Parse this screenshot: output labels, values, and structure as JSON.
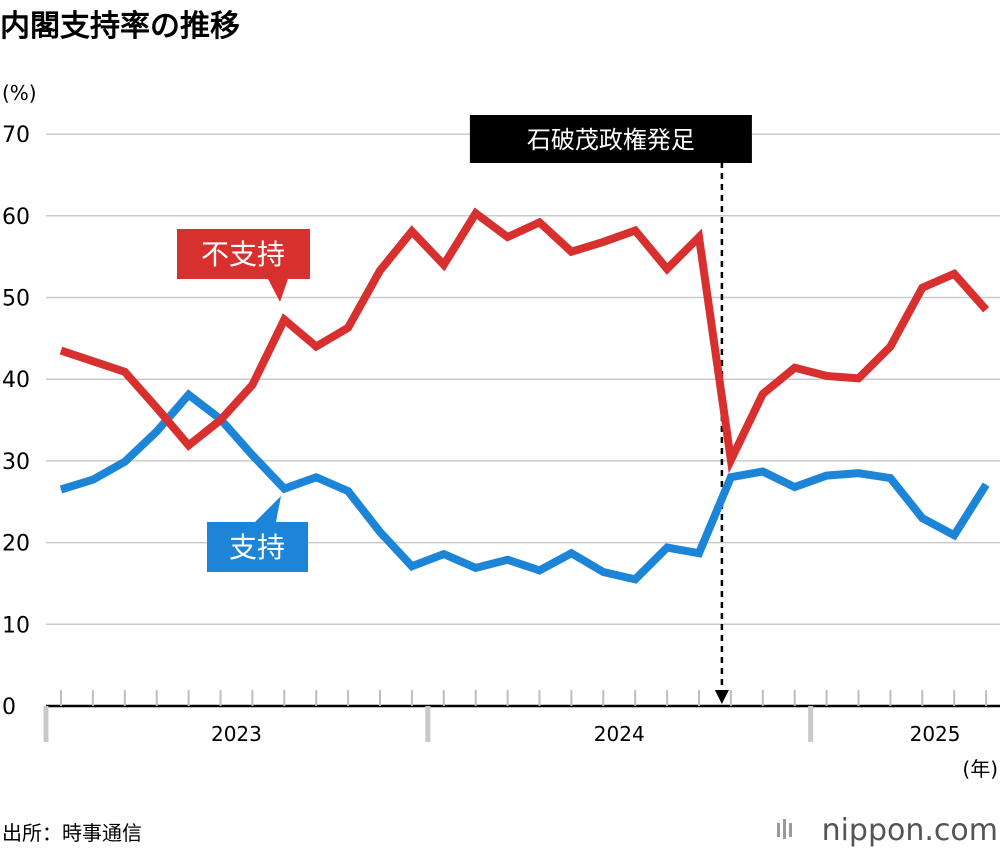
{
  "chart_data": {
    "type": "line",
    "title": "内閣支持率の推移",
    "ylabel": "(%)",
    "xlabel": "(年)",
    "ylim": [
      0,
      70
    ],
    "yticks": [
      "0",
      "10",
      "20",
      "30",
      "40",
      "50",
      "60",
      "70"
    ],
    "years": [
      "2023",
      "2024",
      "2025"
    ],
    "x": [
      "2023-01",
      "2023-02",
      "2023-03",
      "2023-04",
      "2023-05",
      "2023-06",
      "2023-07",
      "2023-08",
      "2023-09",
      "2023-10",
      "2023-11",
      "2023-12",
      "2024-01",
      "2024-02",
      "2024-03",
      "2024-04",
      "2024-05",
      "2024-06",
      "2024-07",
      "2024-08",
      "2024-09",
      "2024-10",
      "2024-11",
      "2024-12",
      "2025-01",
      "2025-02",
      "2025-03",
      "2025-04",
      "2025-05",
      "2025-06"
    ],
    "series": [
      {
        "name": "不支持",
        "color": "#d8302e",
        "values": [
          43.5,
          42.2,
          40.9,
          36.5,
          31.9,
          35.0,
          39.3,
          47.3,
          44.0,
          46.3,
          53.3,
          58.1,
          54.0,
          60.3,
          57.4,
          59.2,
          55.6,
          56.8,
          58.2,
          53.5,
          57.4,
          30.1,
          38.2,
          41.4,
          40.4,
          40.1,
          44.0,
          51.2,
          52.9,
          48.5
        ]
      },
      {
        "name": "支持",
        "color": "#1d85d8",
        "values": [
          26.5,
          27.7,
          29.9,
          33.6,
          38.1,
          35.1,
          30.7,
          26.6,
          28.0,
          26.3,
          21.3,
          17.1,
          18.6,
          16.9,
          17.9,
          16.6,
          18.7,
          16.4,
          15.5,
          19.4,
          18.7,
          28.0,
          28.7,
          26.8,
          28.2,
          28.5,
          27.9,
          23.0,
          20.9,
          27.1
        ]
      }
    ],
    "annotations": [
      {
        "text": "石破茂政権発足",
        "at": "2024-10"
      }
    ]
  },
  "source": "出所：時事通信",
  "brand": "nippon.com"
}
